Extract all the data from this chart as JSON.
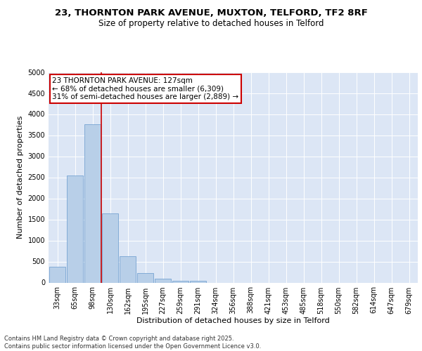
{
  "title1": "23, THORNTON PARK AVENUE, MUXTON, TELFORD, TF2 8RF",
  "title2": "Size of property relative to detached houses in Telford",
  "xlabel": "Distribution of detached houses by size in Telford",
  "ylabel": "Number of detached properties",
  "categories": [
    "33sqm",
    "65sqm",
    "98sqm",
    "130sqm",
    "162sqm",
    "195sqm",
    "227sqm",
    "259sqm",
    "291sqm",
    "324sqm",
    "356sqm",
    "388sqm",
    "421sqm",
    "453sqm",
    "485sqm",
    "518sqm",
    "550sqm",
    "582sqm",
    "614sqm",
    "647sqm",
    "679sqm"
  ],
  "values": [
    380,
    2550,
    3760,
    1650,
    620,
    230,
    90,
    50,
    40,
    0,
    0,
    0,
    0,
    0,
    0,
    0,
    0,
    0,
    0,
    0,
    0
  ],
  "bar_color": "#b8cfe8",
  "bar_edge_color": "#6699cc",
  "vline_x": 2.5,
  "vline_color": "#cc0000",
  "annotation_text": "23 THORNTON PARK AVENUE: 127sqm\n← 68% of detached houses are smaller (6,309)\n31% of semi-detached houses are larger (2,889) →",
  "annotation_box_color": "#cc0000",
  "ylim": [
    0,
    5000
  ],
  "yticks": [
    0,
    500,
    1000,
    1500,
    2000,
    2500,
    3000,
    3500,
    4000,
    4500,
    5000
  ],
  "bg_color": "#dce6f5",
  "footnote": "Contains HM Land Registry data © Crown copyright and database right 2025.\nContains public sector information licensed under the Open Government Licence v3.0.",
  "title_fontsize": 9.5,
  "subtitle_fontsize": 8.5,
  "axis_label_fontsize": 8,
  "tick_fontsize": 7,
  "annot_fontsize": 7.5,
  "footnote_fontsize": 6
}
